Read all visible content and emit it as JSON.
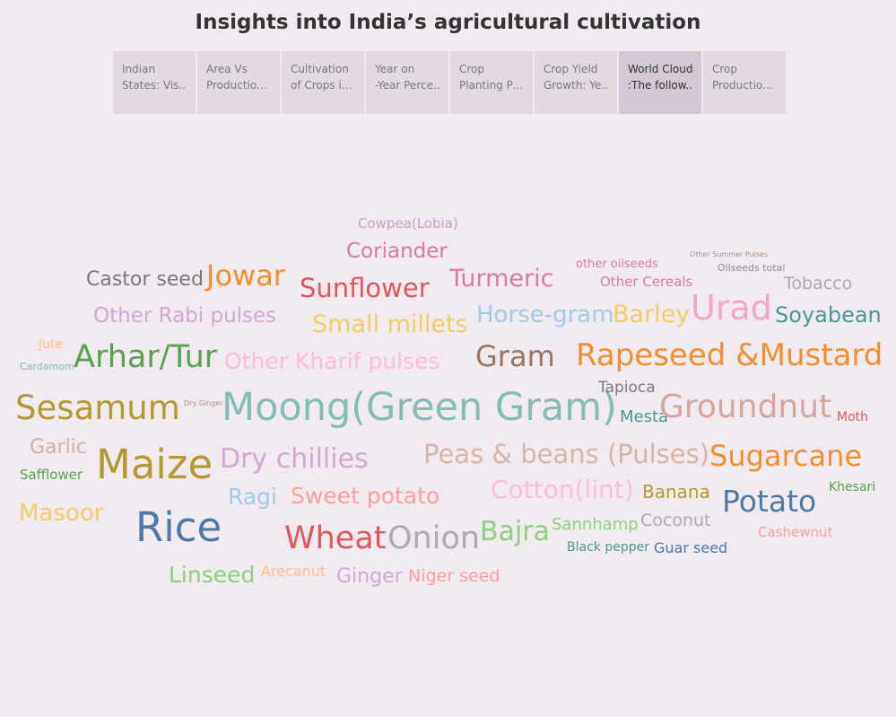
{
  "dashboard": {
    "title": "Insights into India’s agricultural cultivation"
  },
  "tabs": [
    {
      "line1": "Indian",
      "line2": "States: Vis.."
    },
    {
      "line1": "Area Vs",
      "line2": "Production .."
    },
    {
      "line1": "Cultivation",
      "line2": "of Crops in .."
    },
    {
      "line1": "Year on",
      "line2": "-Year Perce.."
    },
    {
      "line1": "Crop",
      "line2": "Planting Pe.."
    },
    {
      "line1": "Crop Yield",
      "line2": "Growth: Ye.."
    },
    {
      "line1": "World Cloud",
      "line2": ":The follow.."
    },
    {
      "line1": "Crop",
      "line2": "Production .."
    }
  ],
  "active_tab_index": 6,
  "word_cloud": [
    {
      "text": "Cowpea(Lobia)",
      "color": "#c9a0c9"
    },
    {
      "text": "Coriander",
      "color": "#d97ba0"
    },
    {
      "text": "Castor seed",
      "color": "#7a7a7a"
    },
    {
      "text": "Jowar",
      "color": "#f28e2b"
    },
    {
      "text": "Sunflower",
      "color": "#e15759"
    },
    {
      "text": "Turmeric",
      "color": "#d97ba0"
    },
    {
      "text": "other oilseeds",
      "color": "#d97ba0"
    },
    {
      "text": "Other Summer Pulses",
      "color": "#b09080"
    },
    {
      "text": "Oilseeds total",
      "color": "#8e8e8e"
    },
    {
      "text": "Other Cereals",
      "color": "#d97ba0"
    },
    {
      "text": "Tobacco",
      "color": "#b0a9b0"
    },
    {
      "text": "Urad",
      "color": "#f3a6c4"
    },
    {
      "text": "Other Rabi pulses",
      "color": "#d2a8d2"
    },
    {
      "text": "Small millets",
      "color": "#f1ce63"
    },
    {
      "text": "Horse-gram",
      "color": "#a0cbe8"
    },
    {
      "text": "Barley",
      "color": "#f1ce63"
    },
    {
      "text": "Soyabean",
      "color": "#499894"
    },
    {
      "text": "Jute",
      "color": "#ffbe7d"
    },
    {
      "text": "Cardamom",
      "color": "#86bcb6"
    },
    {
      "text": "Arhar/Tur",
      "color": "#59a14f"
    },
    {
      "text": "Other Kharif pulses",
      "color": "#fabfd2"
    },
    {
      "text": "Gram",
      "color": "#9c755f"
    },
    {
      "text": "Rapeseed &Mustard",
      "color": "#f28e2b"
    },
    {
      "text": "Sesamum",
      "color": "#b6992d"
    },
    {
      "text": "Dry Ginger",
      "color": "#b09080"
    },
    {
      "text": "Moong(Green Gram)",
      "color": "#86bcb6"
    },
    {
      "text": "Tapioca",
      "color": "#7a7a7a"
    },
    {
      "text": "Mesta",
      "color": "#499894"
    },
    {
      "text": "Groundnut",
      "color": "#d4a6a0"
    },
    {
      "text": "Moth",
      "color": "#e15759"
    },
    {
      "text": "Garlic",
      "color": "#d4b0a0"
    },
    {
      "text": "Maize",
      "color": "#b6992d"
    },
    {
      "text": "Dry chillies",
      "color": "#d2a8d2"
    },
    {
      "text": "Peas & beans (Pulses)",
      "color": "#d7b5a6"
    },
    {
      "text": "Sugarcane",
      "color": "#f28e2b"
    },
    {
      "text": "Safflower",
      "color": "#59a14f"
    },
    {
      "text": "Ragi",
      "color": "#a0cbe8"
    },
    {
      "text": "Sweet potato",
      "color": "#ff9d9a"
    },
    {
      "text": "Cotton(lint)",
      "color": "#fabfd2"
    },
    {
      "text": "Banana",
      "color": "#b6992d"
    },
    {
      "text": "Potato",
      "color": "#4e79a7"
    },
    {
      "text": "Khesari",
      "color": "#59a14f"
    },
    {
      "text": "Masoor",
      "color": "#f1ce63"
    },
    {
      "text": "Rice",
      "color": "#4e79a7"
    },
    {
      "text": "Wheat",
      "color": "#e15759"
    },
    {
      "text": "Onion",
      "color": "#b0a9b0"
    },
    {
      "text": "Bajra",
      "color": "#8cd17d"
    },
    {
      "text": "Sannhamp",
      "color": "#8cd17d"
    },
    {
      "text": "Coconut",
      "color": "#b0a9b0"
    },
    {
      "text": "Cashewnut",
      "color": "#ff9d9a"
    },
    {
      "text": "Black pepper",
      "color": "#499894"
    },
    {
      "text": "Guar seed",
      "color": "#4e79a7"
    },
    {
      "text": "Linseed",
      "color": "#8cd17d"
    },
    {
      "text": "Arecanut",
      "color": "#ffbe7d"
    },
    {
      "text": "Ginger",
      "color": "#d2a8d2"
    },
    {
      "text": "Niger seed",
      "color": "#ff9d9a"
    }
  ]
}
